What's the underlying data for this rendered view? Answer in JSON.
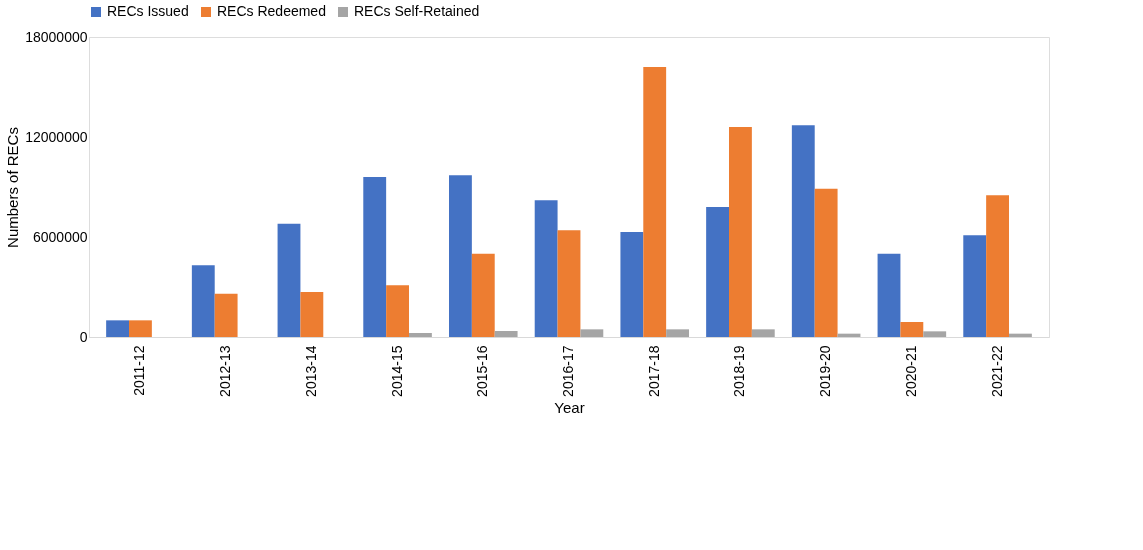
{
  "chart_data": {
    "type": "bar",
    "xlabel": "Year",
    "ylabel": "Numbers of RECs",
    "categories": [
      "2011-12",
      "2012-13",
      "2013-14",
      "2014-15",
      "2015-16",
      "2016-17",
      "2017-18",
      "2018-19",
      "2019-20",
      "2020-21",
      "2021-22"
    ],
    "series": [
      {
        "name": "RECs Issued",
        "color": "#4472c4",
        "values": [
          1000000,
          4300000,
          6800000,
          9600000,
          9700000,
          8200000,
          6300000,
          7800000,
          12700000,
          5000000,
          6100000
        ]
      },
      {
        "name": "RECs Redeemed",
        "color": "#ed7d31",
        "values": [
          1000000,
          2600000,
          2700000,
          3100000,
          5000000,
          6400000,
          16200000,
          12600000,
          8900000,
          900000,
          8500000
        ]
      },
      {
        "name": "RECs Self-Retained",
        "color": "#a5a5a5",
        "values": [
          0,
          0,
          0,
          240000,
          360000,
          460000,
          460000,
          460000,
          200000,
          340000,
          200000
        ]
      }
    ],
    "ylim": [
      0,
      18000000
    ],
    "yticks": [
      0,
      6000000,
      12000000,
      18000000
    ],
    "grid": false,
    "legend": "top"
  }
}
